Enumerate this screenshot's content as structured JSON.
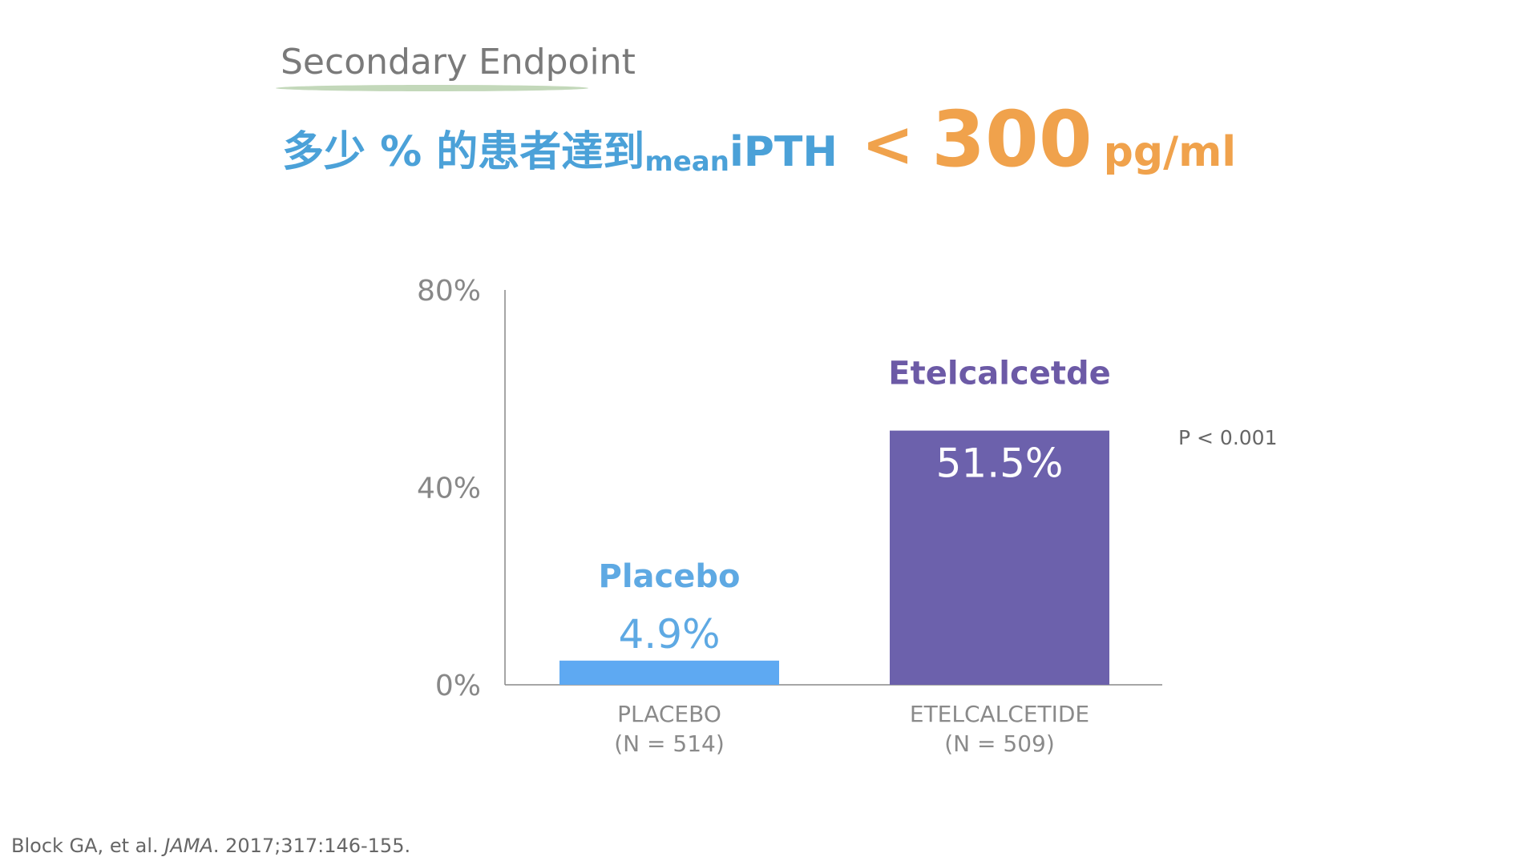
{
  "slide": {
    "section_label": "Secondary Endpoint",
    "headline": {
      "text_cjk": "多少 % 的患者達到 ",
      "subscript": "mean",
      "metric": "iPTH",
      "comparator": "<",
      "threshold": "300",
      "unit": "pg/ml"
    },
    "citation": {
      "authors": "Block GA, et al. ",
      "journal": "JAMA",
      "details": ". 2017;317:146-155."
    },
    "colors": {
      "section_label": "#7a7a7a",
      "underline": "#c3d8ba",
      "headline_blue": "#4ba1d8",
      "headline_orange": "#f0a24c"
    }
  },
  "chart_data": {
    "type": "bar",
    "categories": [
      "PLACEBO",
      "ETELCALCETIDE"
    ],
    "category_sublabels": [
      "(N = 514)",
      "(N = 509)"
    ],
    "values": [
      4.9,
      51.5
    ],
    "value_labels": [
      "4.9%",
      "51.5%"
    ],
    "bar_names": [
      "Placebo",
      "Etelcalcetde"
    ],
    "bar_colors": [
      "#5ea9f2",
      "#6c61ac"
    ],
    "name_colors": [
      "#5ea9e3",
      "#6c5aa6"
    ],
    "value_label_colors": [
      "#5ea9e3",
      "#ffffff"
    ],
    "value_label_positions": [
      "above",
      "inside"
    ],
    "ylim": [
      0,
      80
    ],
    "yticks": [
      0,
      40,
      80
    ],
    "ytick_labels": [
      "0%",
      "40%",
      "80%"
    ],
    "annotation": "P < 0.001",
    "grid": false,
    "legend": "none"
  }
}
